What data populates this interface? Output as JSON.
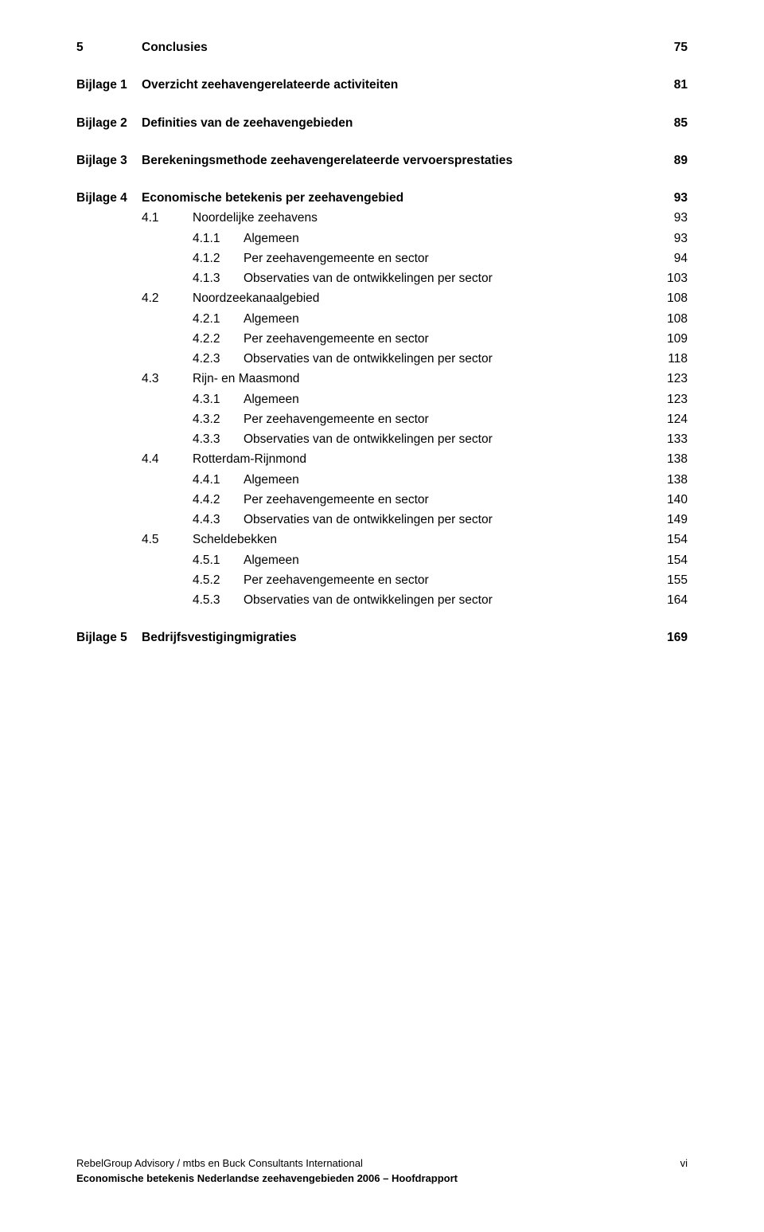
{
  "toc": [
    {
      "type": "line",
      "bold": true,
      "indent": 1,
      "numClass": "num-w1",
      "num": "5",
      "title": "Conclusies",
      "page": "75"
    },
    {
      "type": "gap",
      "size": "med"
    },
    {
      "type": "line",
      "bold": true,
      "indent": 1,
      "numClass": "num-w1",
      "num": "Bijlage 1",
      "title": "Overzicht zeehavengerelateerde activiteiten",
      "page": "81"
    },
    {
      "type": "gap",
      "size": "med"
    },
    {
      "type": "line",
      "bold": true,
      "indent": 1,
      "numClass": "num-w1",
      "num": "Bijlage 2",
      "title": "Definities van de zeehavengebieden",
      "page": "85"
    },
    {
      "type": "gap",
      "size": "med"
    },
    {
      "type": "line",
      "bold": true,
      "indent": 1,
      "numClass": "num-w1",
      "num": "Bijlage 3",
      "title": "Berekeningsmethode zeehavengerelateerde vervoersprestaties",
      "page": "89"
    },
    {
      "type": "gap",
      "size": "med"
    },
    {
      "type": "line",
      "bold": true,
      "indent": 1,
      "numClass": "num-w1",
      "num": "Bijlage 4",
      "title": "Economische betekenis per zeehavengebied",
      "page": "93"
    },
    {
      "type": "line",
      "bold": false,
      "indent": 2,
      "numClass": "num-w2",
      "num": "4.1",
      "title": "Noordelijke zeehavens",
      "page": "93"
    },
    {
      "type": "line",
      "bold": false,
      "indent": 3,
      "numClass": "num-w3",
      "num": "4.1.1",
      "title": "Algemeen",
      "page": "93"
    },
    {
      "type": "line",
      "bold": false,
      "indent": 3,
      "numClass": "num-w3",
      "num": "4.1.2",
      "title": "Per zeehavengemeente en sector",
      "page": "94"
    },
    {
      "type": "line",
      "bold": false,
      "indent": 3,
      "numClass": "num-w3",
      "num": "4.1.3",
      "title": "Observaties van de ontwikkelingen per sector",
      "page": "103"
    },
    {
      "type": "line",
      "bold": false,
      "indent": 2,
      "numClass": "num-w2",
      "num": "4.2",
      "title": "Noordzeekanaalgebied",
      "page": "108"
    },
    {
      "type": "line",
      "bold": false,
      "indent": 3,
      "numClass": "num-w3",
      "num": "4.2.1",
      "title": "Algemeen",
      "page": "108"
    },
    {
      "type": "line",
      "bold": false,
      "indent": 3,
      "numClass": "num-w3",
      "num": "4.2.2",
      "title": "Per zeehavengemeente en sector",
      "page": "109"
    },
    {
      "type": "line",
      "bold": false,
      "indent": 3,
      "numClass": "num-w3",
      "num": "4.2.3",
      "title": "Observaties van de ontwikkelingen per sector",
      "page": "118"
    },
    {
      "type": "line",
      "bold": false,
      "indent": 2,
      "numClass": "num-w2",
      "num": "4.3",
      "title": "Rijn- en Maasmond",
      "page": "123"
    },
    {
      "type": "line",
      "bold": false,
      "indent": 3,
      "numClass": "num-w3",
      "num": "4.3.1",
      "title": "Algemeen",
      "page": "123"
    },
    {
      "type": "line",
      "bold": false,
      "indent": 3,
      "numClass": "num-w3",
      "num": "4.3.2",
      "title": "Per zeehavengemeente en sector",
      "page": "124"
    },
    {
      "type": "line",
      "bold": false,
      "indent": 3,
      "numClass": "num-w3",
      "num": "4.3.3",
      "title": "Observaties van de ontwikkelingen per sector",
      "page": "133"
    },
    {
      "type": "line",
      "bold": false,
      "indent": 2,
      "numClass": "num-w2",
      "num": "4.4",
      "title": "Rotterdam-Rijnmond",
      "page": "138"
    },
    {
      "type": "line",
      "bold": false,
      "indent": 3,
      "numClass": "num-w3",
      "num": "4.4.1",
      "title": "Algemeen",
      "page": "138"
    },
    {
      "type": "line",
      "bold": false,
      "indent": 3,
      "numClass": "num-w3",
      "num": "4.4.2",
      "title": "Per zeehavengemeente en sector",
      "page": "140"
    },
    {
      "type": "line",
      "bold": false,
      "indent": 3,
      "numClass": "num-w3",
      "num": "4.4.3",
      "title": "Observaties van de ontwikkelingen per sector",
      "page": "149"
    },
    {
      "type": "line",
      "bold": false,
      "indent": 2,
      "numClass": "num-w2",
      "num": "4.5",
      "title": "Scheldebekken",
      "page": "154"
    },
    {
      "type": "line",
      "bold": false,
      "indent": 3,
      "numClass": "num-w3",
      "num": "4.5.1",
      "title": "Algemeen",
      "page": "154"
    },
    {
      "type": "line",
      "bold": false,
      "indent": 3,
      "numClass": "num-w3",
      "num": "4.5.2",
      "title": "Per zeehavengemeente en sector",
      "page": "155"
    },
    {
      "type": "line",
      "bold": false,
      "indent": 3,
      "numClass": "num-w3",
      "num": "4.5.3",
      "title": "Observaties van de ontwikkelingen per sector",
      "page": "164"
    },
    {
      "type": "gap",
      "size": "med"
    },
    {
      "type": "line",
      "bold": true,
      "indent": 1,
      "numClass": "num-w1",
      "num": "Bijlage 5",
      "title": "Bedrijfsvestigingmigraties",
      "page": "169"
    }
  ],
  "footer": {
    "left": "RebelGroup Advisory / mtbs en Buck Consultants International",
    "right": "vi",
    "subtitle": "Economische betekenis Nederlandse zeehavengebieden 2006 – Hoofdrapport"
  }
}
